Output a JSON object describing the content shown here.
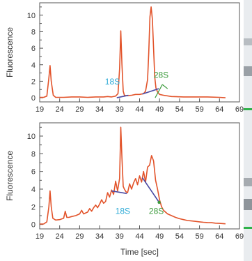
{
  "chart_data": [
    {
      "type": "line",
      "xlabel": "",
      "ylabel": "Fluorescence",
      "xlim": [
        19,
        69
      ],
      "ylim": [
        -0.5,
        11.5
      ],
      "x_ticks": [
        "19",
        "24",
        "29",
        "34",
        "39",
        "44",
        "49",
        "54",
        "59",
        "64",
        "69"
      ],
      "y_ticks": [
        "0",
        "2",
        "4",
        "6",
        "8",
        "10"
      ],
      "series_color": "#e2532a",
      "baseline_color": "#4a4aa3",
      "x": [
        19,
        20,
        20.8,
        21.3,
        21.6,
        21.9,
        22.4,
        23,
        25,
        27,
        29,
        31,
        33,
        35,
        36,
        37,
        38,
        38.6,
        39,
        39.3,
        39.6,
        39.9,
        40.2,
        40.6,
        41,
        42,
        43,
        44,
        45,
        45.5,
        46,
        46.3,
        46.6,
        46.9,
        47.2,
        47.5,
        47.8,
        48.1,
        48.5,
        49,
        50,
        52,
        55,
        58,
        61,
        64,
        65.5
      ],
      "y": [
        0.05,
        0.05,
        0.2,
        2.4,
        3.9,
        2.0,
        0.3,
        0.05,
        0.05,
        0.1,
        0.1,
        0.05,
        0.1,
        0.1,
        0.15,
        0.1,
        0.2,
        0.5,
        3.5,
        8.1,
        4.0,
        0.8,
        0.3,
        0.25,
        0.25,
        0.3,
        0.4,
        0.4,
        0.5,
        0.8,
        2.2,
        5.5,
        9.8,
        11.0,
        9.5,
        6.0,
        2.5,
        1.2,
        0.7,
        0.4,
        0.3,
        0.15,
        0.1,
        0.1,
        0.1,
        0.05,
        0.0
      ],
      "baseline": [
        {
          "from": [
            38.3,
            0.0
          ],
          "to": [
            41.2,
            0.3
          ]
        },
        {
          "from": [
            44.7,
            0.45
          ],
          "to": [
            48.8,
            1.1
          ]
        }
      ],
      "annotations": [
        {
          "text": "18S",
          "color": "#2aa9d6",
          "x": 37.2,
          "y": 1.6
        },
        {
          "text": "28S",
          "color": "#3a9a3a",
          "x": 49.4,
          "y": 2.4
        }
      ],
      "annotation_leaders": [
        {
          "color": "#3a9a3a",
          "from": [
            49.7,
            1.6
          ],
          "to": [
            47.9,
            0.0
          ]
        },
        {
          "color": "#3a9a3a",
          "from": [
            49.7,
            1.6
          ],
          "to": [
            51.0,
            1.1
          ]
        }
      ]
    },
    {
      "type": "line",
      "xlabel": "Time [sec]",
      "ylabel": "Fluorescence",
      "xlim": [
        19,
        69
      ],
      "ylim": [
        -0.5,
        11.5
      ],
      "x_ticks": [
        "19",
        "24",
        "29",
        "34",
        "39",
        "44",
        "49",
        "54",
        "59",
        "64",
        "69"
      ],
      "y_ticks": [
        "0",
        "2",
        "4",
        "6",
        "8",
        "10"
      ],
      "series_color": "#e2532a",
      "baseline_color": "#4a4aa3",
      "x": [
        19,
        20,
        20.8,
        21.3,
        21.6,
        21.9,
        22.3,
        23,
        24,
        25,
        25.4,
        25.8,
        26.3,
        27,
        28,
        29,
        29.5,
        30,
        31,
        31.5,
        32,
        32.5,
        33,
        33.5,
        34,
        34.5,
        35,
        35.5,
        36,
        36.5,
        37,
        37.5,
        38,
        38.5,
        39,
        39.3,
        39.6,
        39.9,
        40.2,
        40.6,
        41,
        41.5,
        42,
        42.5,
        43,
        43.5,
        44,
        44.5,
        45,
        45.5,
        46,
        46.5,
        47,
        47.5,
        48,
        48.5,
        49,
        49.5,
        50,
        51,
        52,
        53,
        54,
        55,
        56,
        57,
        58,
        59,
        60,
        61,
        62,
        63,
        64,
        65.5
      ],
      "y": [
        0.05,
        0.05,
        0.3,
        2.0,
        3.8,
        2.0,
        0.7,
        0.5,
        0.55,
        0.7,
        1.5,
        0.8,
        0.8,
        0.9,
        1.0,
        1.2,
        1.6,
        1.2,
        1.4,
        1.8,
        1.5,
        1.9,
        2.2,
        1.9,
        2.3,
        2.8,
        2.4,
        2.6,
        3.6,
        3.1,
        3.9,
        3.4,
        4.9,
        3.8,
        5.2,
        11.0,
        7.5,
        4.3,
        4.0,
        3.7,
        3.6,
        4.6,
        4.0,
        4.7,
        5.2,
        4.5,
        5.5,
        4.8,
        6.0,
        4.8,
        6.5,
        6.7,
        7.8,
        7.2,
        5.0,
        4.0,
        2.8,
        2.0,
        1.6,
        1.2,
        1.0,
        0.8,
        0.65,
        0.55,
        0.45,
        0.4,
        0.35,
        0.3,
        0.25,
        0.22,
        0.2,
        0.15,
        0.12,
        0.08
      ],
      "baseline": [
        {
          "from": [
            37.0,
            3.8
          ],
          "to": [
            40.8,
            3.5
          ]
        },
        {
          "from": [
            44.7,
            5.3
          ],
          "to": [
            48.9,
            2.5
          ]
        }
      ],
      "annotations": [
        {
          "text": "18S",
          "color": "#2aa9d6",
          "x": 39.8,
          "y": 1.2
        },
        {
          "text": "28S",
          "color": "#3a9a3a",
          "x": 48.2,
          "y": 1.2
        }
      ],
      "annotation_leaders": [],
      "markers": [
        {
          "color": "#3a9a3a",
          "x": 48.9,
          "y": 2.5
        }
      ]
    }
  ]
}
